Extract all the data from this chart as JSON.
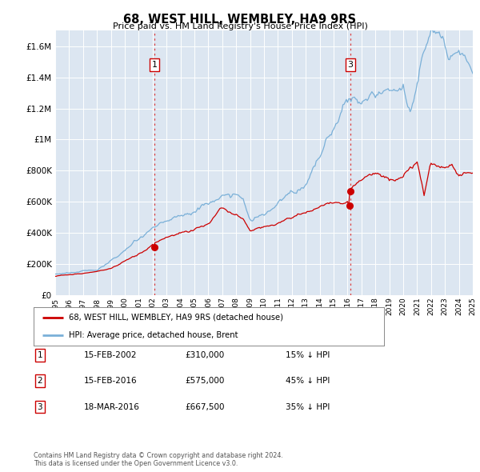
{
  "title": "68, WEST HILL, WEMBLEY, HA9 9RS",
  "subtitle": "Price paid vs. HM Land Registry's House Price Index (HPI)",
  "hpi_color": "#7ab0d8",
  "price_color": "#cc0000",
  "marker_color": "#cc0000",
  "plot_bg": "#dce6f1",
  "ylim": [
    0,
    1700000
  ],
  "yticks": [
    0,
    200000,
    400000,
    600000,
    800000,
    1000000,
    1200000,
    1400000,
    1600000
  ],
  "xmin": 1995,
  "xmax": 2025,
  "legend_label_price": "68, WEST HILL, WEMBLEY, HA9 9RS (detached house)",
  "legend_label_hpi": "HPI: Average price, detached house, Brent",
  "transactions": [
    {
      "num": 1,
      "date": "15-FEB-2002",
      "price": 310000,
      "pct": "15%",
      "dir": "↓",
      "year": 2002.125
    },
    {
      "num": 2,
      "date": "15-FEB-2016",
      "price": 575000,
      "pct": "45%",
      "dir": "↓",
      "year": 2016.125
    },
    {
      "num": 3,
      "date": "18-MAR-2016",
      "price": 667500,
      "pct": "35%",
      "dir": "↓",
      "year": 2016.208
    }
  ],
  "vline_years": [
    2002.125,
    2016.208
  ],
  "vline_nums": [
    1,
    3
  ],
  "footnote": "Contains HM Land Registry data © Crown copyright and database right 2024.\nThis data is licensed under the Open Government Licence v3.0."
}
